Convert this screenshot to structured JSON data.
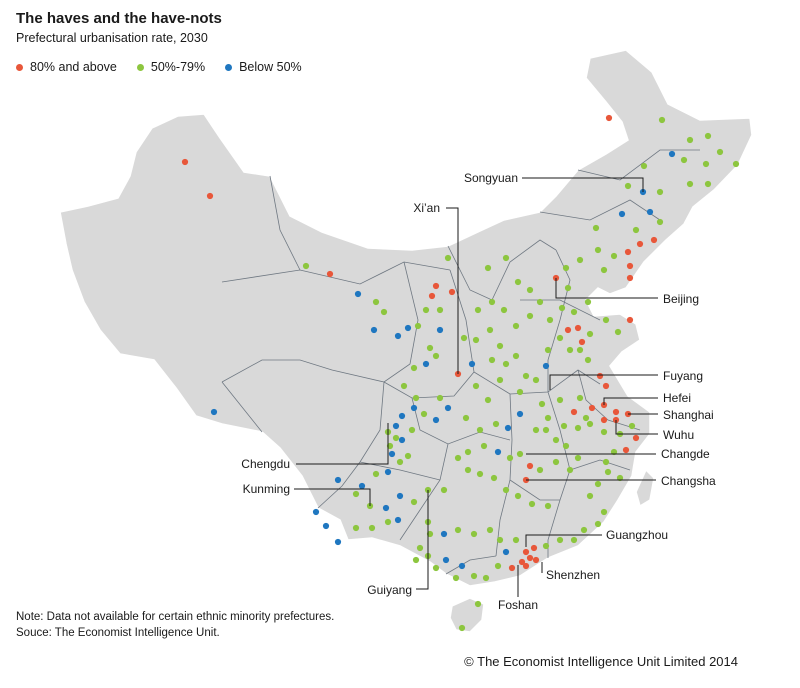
{
  "title": "The haves and the have-nots",
  "subtitle": "Prefectural urbanisation rate, 2030",
  "legend": [
    {
      "label": "80% and above",
      "color": "#e8573a"
    },
    {
      "label": "50%-79%",
      "color": "#8dc63f"
    },
    {
      "label": "Below 50%",
      "color": "#1f77c0"
    }
  ],
  "colors": {
    "map_fill": "#d9d9d9",
    "map_border": "#ffffff",
    "province_border": "#6f7882"
  },
  "cities": {
    "songyuan": "Songyuan",
    "xian": "Xi’an",
    "beijing": "Beijing",
    "fuyang": "Fuyang",
    "hefei": "Hefei",
    "shanghai": "Shanghai",
    "wuhu": "Wuhu",
    "chengdu": "Chengdu",
    "changde": "Changde",
    "kunming": "Kunming",
    "changsha": "Changsha",
    "guangzhou": "Guangzhou",
    "shenzhen": "Shenzhen",
    "guiyang": "Guiyang",
    "foshan": "Foshan"
  },
  "note": "Note: Data not available for certain ethnic minority prefectures.",
  "source": "Souce: The Economist Intelligence Unit.",
  "copyright": "© The Economist Intelligence Unit Limited 2014"
}
